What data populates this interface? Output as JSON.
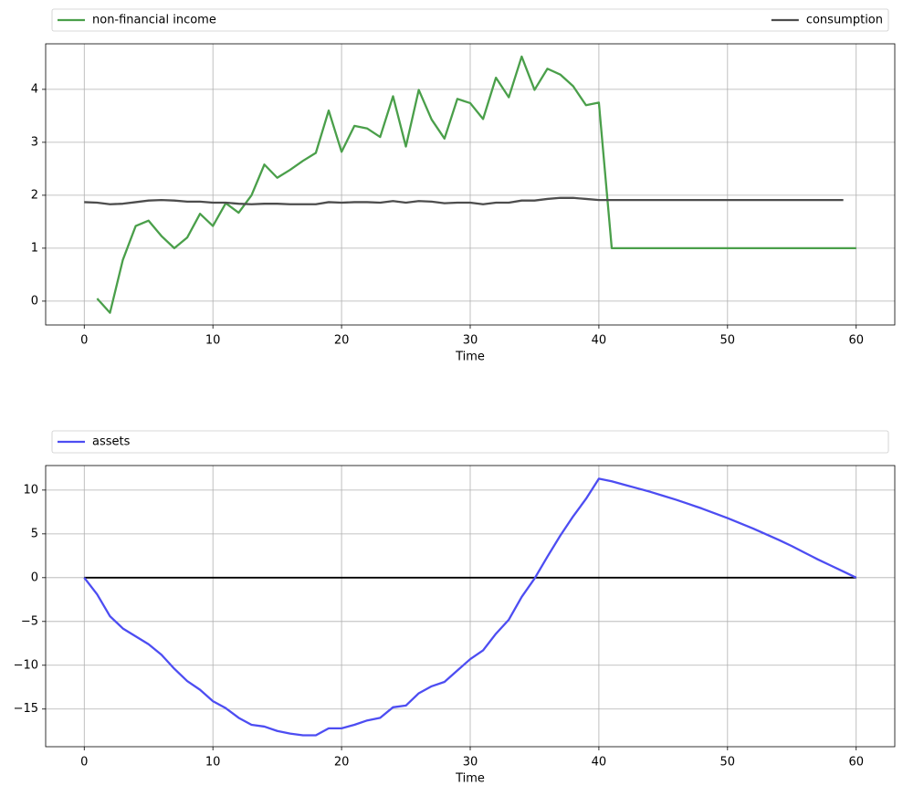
{
  "chart_data": [
    {
      "type": "line",
      "xlabel": "Time",
      "xlim": [
        -3,
        63
      ],
      "ylim": [
        -0.45,
        4.86
      ],
      "xticks": [
        0,
        10,
        20,
        30,
        40,
        50,
        60
      ],
      "yticks": [
        0,
        1,
        2,
        3,
        4
      ],
      "grid": true,
      "legend": "above",
      "series": [
        {
          "name": "non-financial income",
          "color": "#4a9f4a",
          "x": [
            1,
            2,
            3,
            4,
            5,
            6,
            7,
            8,
            9,
            10,
            11,
            12,
            13,
            14,
            15,
            16,
            17,
            18,
            19,
            20,
            21,
            22,
            23,
            24,
            25,
            26,
            27,
            28,
            29,
            30,
            31,
            32,
            33,
            34,
            35,
            36,
            37,
            38,
            39,
            40,
            41,
            42,
            43,
            44,
            45,
            46,
            47,
            48,
            49,
            50,
            51,
            52,
            53,
            54,
            55,
            56,
            57,
            58,
            59,
            60
          ],
          "values": [
            0.05,
            -0.22,
            0.78,
            1.42,
            1.52,
            1.23,
            1.0,
            1.2,
            1.65,
            1.42,
            1.85,
            1.67,
            2.0,
            2.58,
            2.33,
            2.48,
            2.65,
            2.8,
            3.6,
            2.82,
            3.31,
            3.26,
            3.1,
            3.87,
            2.92,
            3.99,
            3.43,
            3.07,
            3.82,
            3.74,
            3.44,
            4.22,
            3.85,
            4.62,
            3.99,
            4.39,
            4.28,
            4.06,
            3.7,
            3.75,
            1.0,
            1.0,
            1.0,
            1.0,
            1.0,
            1.0,
            1.0,
            1.0,
            1.0,
            1.0,
            1.0,
            1.0,
            1.0,
            1.0,
            1.0,
            1.0,
            1.0,
            1.0,
            1.0,
            1.0
          ]
        },
        {
          "name": "consumption",
          "color": "#4d4d4d",
          "x": [
            0,
            1,
            2,
            3,
            4,
            5,
            6,
            7,
            8,
            9,
            10,
            11,
            12,
            13,
            14,
            15,
            16,
            17,
            18,
            19,
            20,
            21,
            22,
            23,
            24,
            25,
            26,
            27,
            28,
            29,
            30,
            31,
            32,
            33,
            34,
            35,
            36,
            37,
            38,
            39,
            40,
            41,
            42,
            43,
            44,
            45,
            46,
            47,
            48,
            49,
            50,
            51,
            52,
            53,
            54,
            55,
            56,
            57,
            58,
            59
          ],
          "values": [
            1.87,
            1.86,
            1.83,
            1.84,
            1.87,
            1.9,
            1.91,
            1.9,
            1.88,
            1.88,
            1.86,
            1.86,
            1.84,
            1.83,
            1.84,
            1.84,
            1.83,
            1.83,
            1.83,
            1.87,
            1.86,
            1.87,
            1.87,
            1.86,
            1.89,
            1.86,
            1.89,
            1.88,
            1.85,
            1.86,
            1.86,
            1.83,
            1.86,
            1.86,
            1.9,
            1.9,
            1.93,
            1.95,
            1.95,
            1.93,
            1.91,
            1.91,
            1.91,
            1.91,
            1.91,
            1.91,
            1.91,
            1.91,
            1.91,
            1.91,
            1.91,
            1.91,
            1.91,
            1.91,
            1.91,
            1.91,
            1.91,
            1.91,
            1.91,
            1.91
          ]
        }
      ]
    },
    {
      "type": "line",
      "xlabel": "Time",
      "xlim": [
        -3,
        63
      ],
      "ylim": [
        -19.3,
        12.8
      ],
      "xticks": [
        0,
        10,
        20,
        30,
        40,
        50,
        60
      ],
      "yticks": [
        {
          "value": -15,
          "label": "−15"
        },
        {
          "value": -10,
          "label": "−10"
        },
        {
          "value": -5,
          "label": "−5"
        },
        0,
        5,
        10
      ],
      "grid": true,
      "legend": "above",
      "hline": {
        "y": 0,
        "xmin": 0,
        "xmax": 60,
        "color": "#000000"
      },
      "series": [
        {
          "name": "assets",
          "color": "#4d4df2",
          "x": [
            0,
            1,
            2,
            3,
            4,
            5,
            6,
            7,
            8,
            9,
            10,
            11,
            12,
            13,
            14,
            15,
            16,
            17,
            18,
            19,
            20,
            21,
            22,
            23,
            24,
            25,
            26,
            27,
            28,
            29,
            30,
            31,
            32,
            33,
            34,
            35,
            36,
            37,
            38,
            39,
            40,
            41,
            42,
            43,
            44,
            45,
            46,
            47,
            48,
            49,
            50,
            51,
            52,
            53,
            54,
            55,
            56,
            57,
            58,
            59,
            60
          ],
          "values": [
            0,
            -1.9,
            -4.4,
            -5.8,
            -6.7,
            -7.6,
            -8.8,
            -10.4,
            -11.8,
            -12.8,
            -14.1,
            -14.9,
            -16.0,
            -16.8,
            -17.0,
            -17.5,
            -17.8,
            -18.0,
            -18.0,
            -17.2,
            -17.2,
            -16.8,
            -16.3,
            -16.0,
            -14.8,
            -14.6,
            -13.2,
            -12.4,
            -11.9,
            -10.6,
            -9.3,
            -8.3,
            -6.4,
            -4.8,
            -2.2,
            -0.1,
            2.4,
            4.8,
            7.0,
            9.0,
            11.3,
            11.0,
            10.6,
            10.2,
            9.8,
            9.35,
            8.9,
            8.4,
            7.9,
            7.35,
            6.8,
            6.2,
            5.6,
            4.95,
            4.3,
            3.6,
            2.85,
            2.1,
            1.4,
            0.7,
            0.0
          ]
        }
      ]
    }
  ]
}
